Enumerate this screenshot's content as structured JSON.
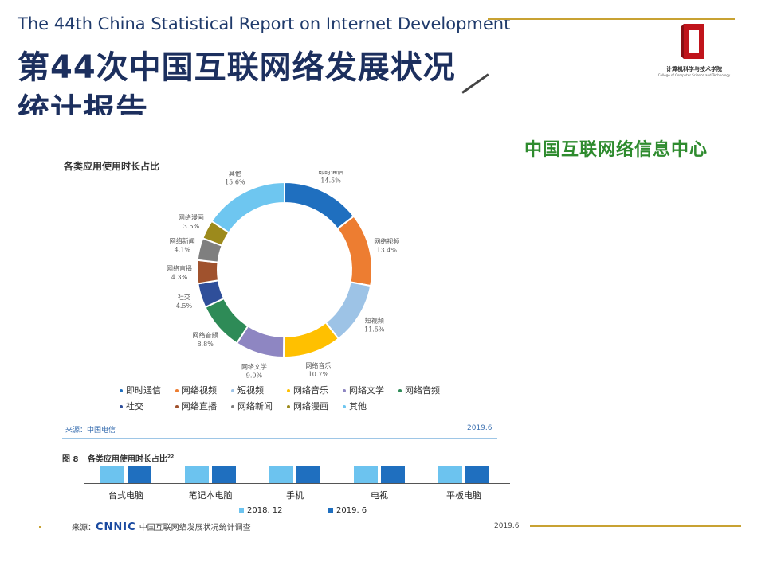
{
  "slide": {
    "title_en": "The 44th China Statistical Report on Internet Development",
    "title_zh_line1": "第44次中国互联网络发展状况",
    "title_zh_line2": "统计报告",
    "org": "中国互联网络信息中心",
    "logo_text": "计算机科学与技术学院",
    "logo_subtext": "College of Computer Science and Technology",
    "accent_color": "#c8a232",
    "org_color": "#2e8b2e"
  },
  "chart_data": [
    {
      "type": "pie",
      "title": "各类应用使用时长占比",
      "unit": "%",
      "slices": [
        {
          "label": "即时通信",
          "value": 14.5,
          "display": "14.5%",
          "color": "#1f6fbf"
        },
        {
          "label": "网络视频",
          "value": 13.4,
          "display": "13.4%",
          "color": "#ed7d31"
        },
        {
          "label": "短视频",
          "value": 11.5,
          "display": "11.5%",
          "color": "#9dc3e6"
        },
        {
          "label": "网络音乐",
          "value": 10.7,
          "display": "10.7%",
          "color": "#ffc000"
        },
        {
          "label": "网络文学",
          "value": 9.0,
          "display": "9.0%",
          "color": "#8e86c2"
        },
        {
          "label": "网络音频",
          "value": 8.8,
          "display": "8.8%",
          "color": "#2e8b57"
        },
        {
          "label": "社交",
          "value": 4.5,
          "display": "4.5%",
          "color": "#2f4f9a"
        },
        {
          "label": "网络直播",
          "value": 4.3,
          "display": "4.3%",
          "color": "#a0522d"
        },
        {
          "label": "网络新闻",
          "value": 4.1,
          "display": "4.1%",
          "color": "#7f7f7f"
        },
        {
          "label": "网络漫画",
          "value": 3.5,
          "display": "3.5%",
          "color": "#9c8a1c"
        },
        {
          "label": "其他",
          "value": 15.6,
          "display": "15.6%",
          "color": "#6ec6f0"
        }
      ],
      "legend_position": "bottom",
      "source": "来源：中国电信",
      "date": "2019.6"
    },
    {
      "type": "bar",
      "figure_label": "图 8",
      "title": "各类应用使用时长占比",
      "title_superscript": "22",
      "categories": [
        "台式电脑",
        "笔记本电脑",
        "手机",
        "电视",
        "平板电脑"
      ],
      "series": [
        {
          "name": "2018. 12",
          "color": "#6cc3ef"
        },
        {
          "name": "2019. 6",
          "color": "#1f6fbf"
        }
      ],
      "legend_position": "bottom",
      "source_prefix": "来源：",
      "source_brand": "CNNIC",
      "source_rest": "中国互联网络发展状况统计调查",
      "date": "2019.6"
    }
  ]
}
